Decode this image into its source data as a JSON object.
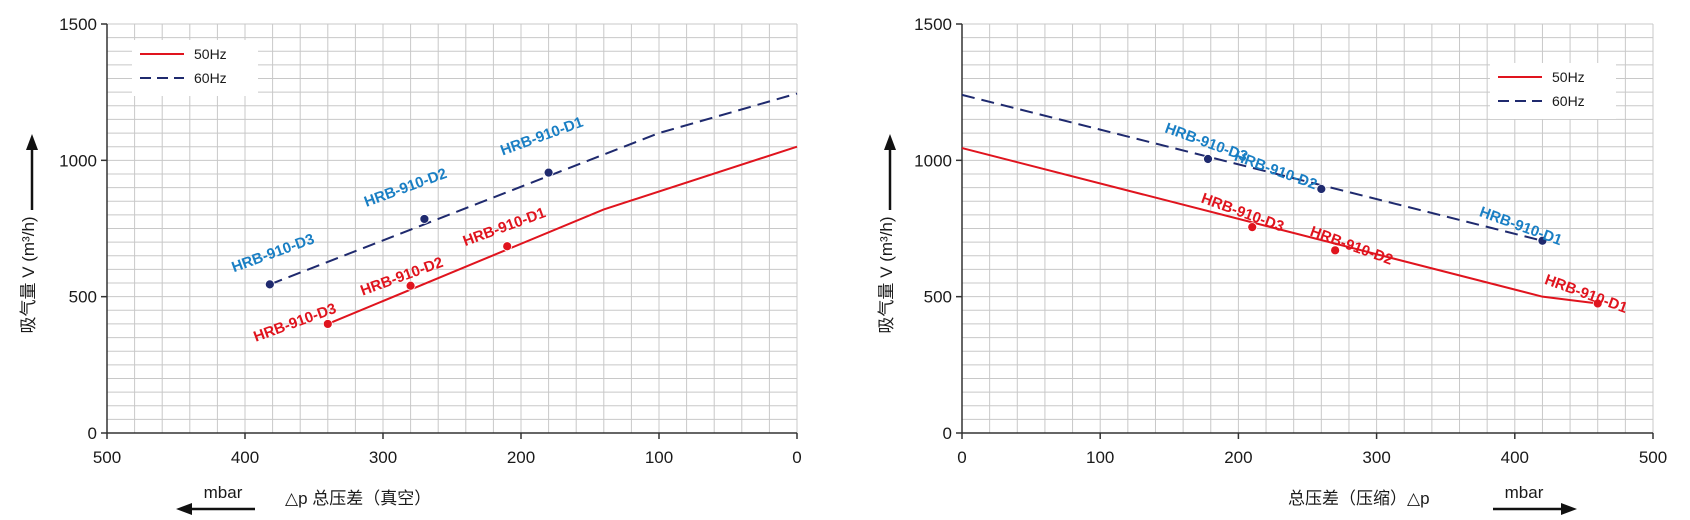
{
  "colors": {
    "red": "#e0141e",
    "navy": "#1f2a6e",
    "blue_label": "#1a7fc4",
    "grid": "#c8c8c8",
    "axis": "#333333"
  },
  "chart_data": [
    {
      "type": "line",
      "x_direction": "reversed",
      "xlim": [
        500,
        0
      ],
      "ylim": [
        0,
        1500
      ],
      "x_ticks": [
        500,
        400,
        300,
        200,
        100,
        0
      ],
      "y_ticks": [
        0,
        500,
        1000,
        1500
      ],
      "grid": true,
      "legend_position": "top-left",
      "ylabel_text": "吸气量 V (m³/h)",
      "xlabel_unit": "mbar",
      "xlabel_text": "△p  总压差（真空）",
      "series": [
        {
          "name": "50Hz",
          "color": "#e0141e",
          "dash": false,
          "x": [
            340,
            140,
            0
          ],
          "y": [
            400,
            820,
            1050
          ]
        },
        {
          "name": "60Hz",
          "color": "#1f2a6e",
          "dash": true,
          "x": [
            382,
            100,
            0
          ],
          "y": [
            545,
            1100,
            1245
          ]
        }
      ],
      "points": [
        {
          "label": "HRB-910-D3",
          "x": 340,
          "y": 400,
          "series": "50Hz"
        },
        {
          "label": "HRB-910-D2",
          "x": 280,
          "y": 540,
          "series": "50Hz"
        },
        {
          "label": "HRB-910-D1",
          "x": 210,
          "y": 685,
          "series": "50Hz"
        },
        {
          "label": "HRB-910-D3",
          "x": 382,
          "y": 545,
          "series": "60Hz"
        },
        {
          "label": "HRB-910-D2",
          "x": 270,
          "y": 785,
          "series": "60Hz"
        },
        {
          "label": "HRB-910-D1",
          "x": 180,
          "y": 955,
          "series": "60Hz"
        }
      ]
    },
    {
      "type": "line",
      "x_direction": "normal",
      "xlim": [
        0,
        500
      ],
      "ylim": [
        0,
        1500
      ],
      "x_ticks": [
        0,
        100,
        200,
        300,
        400,
        500
      ],
      "y_ticks": [
        0,
        500,
        1000,
        1500
      ],
      "grid": true,
      "legend_position": "top-right",
      "ylabel_text": "吸气量 V (m³/h)",
      "xlabel_unit": "mbar",
      "xlabel_text": "总压差（压缩）△p",
      "series": [
        {
          "name": "50Hz",
          "color": "#e0141e",
          "dash": false,
          "x": [
            0,
            420,
            460
          ],
          "y": [
            1045,
            500,
            475
          ]
        },
        {
          "name": "60Hz",
          "color": "#1f2a6e",
          "dash": true,
          "x": [
            0,
            420
          ],
          "y": [
            1240,
            705
          ]
        }
      ],
      "points": [
        {
          "label": "HRB-910-D3",
          "x": 210,
          "y": 755,
          "series": "50Hz"
        },
        {
          "label": "HRB-910-D2",
          "x": 270,
          "y": 670,
          "series": "50Hz"
        },
        {
          "label": "HRB-910-D1",
          "x": 460,
          "y": 475,
          "series": "50Hz"
        },
        {
          "label": "HRB-910-D3",
          "x": 178,
          "y": 1005,
          "series": "60Hz"
        },
        {
          "label": "HRB-910-D2",
          "x": 260,
          "y": 895,
          "series": "60Hz"
        },
        {
          "label": "HRB-910-D1",
          "x": 420,
          "y": 705,
          "series": "60Hz"
        }
      ]
    }
  ]
}
